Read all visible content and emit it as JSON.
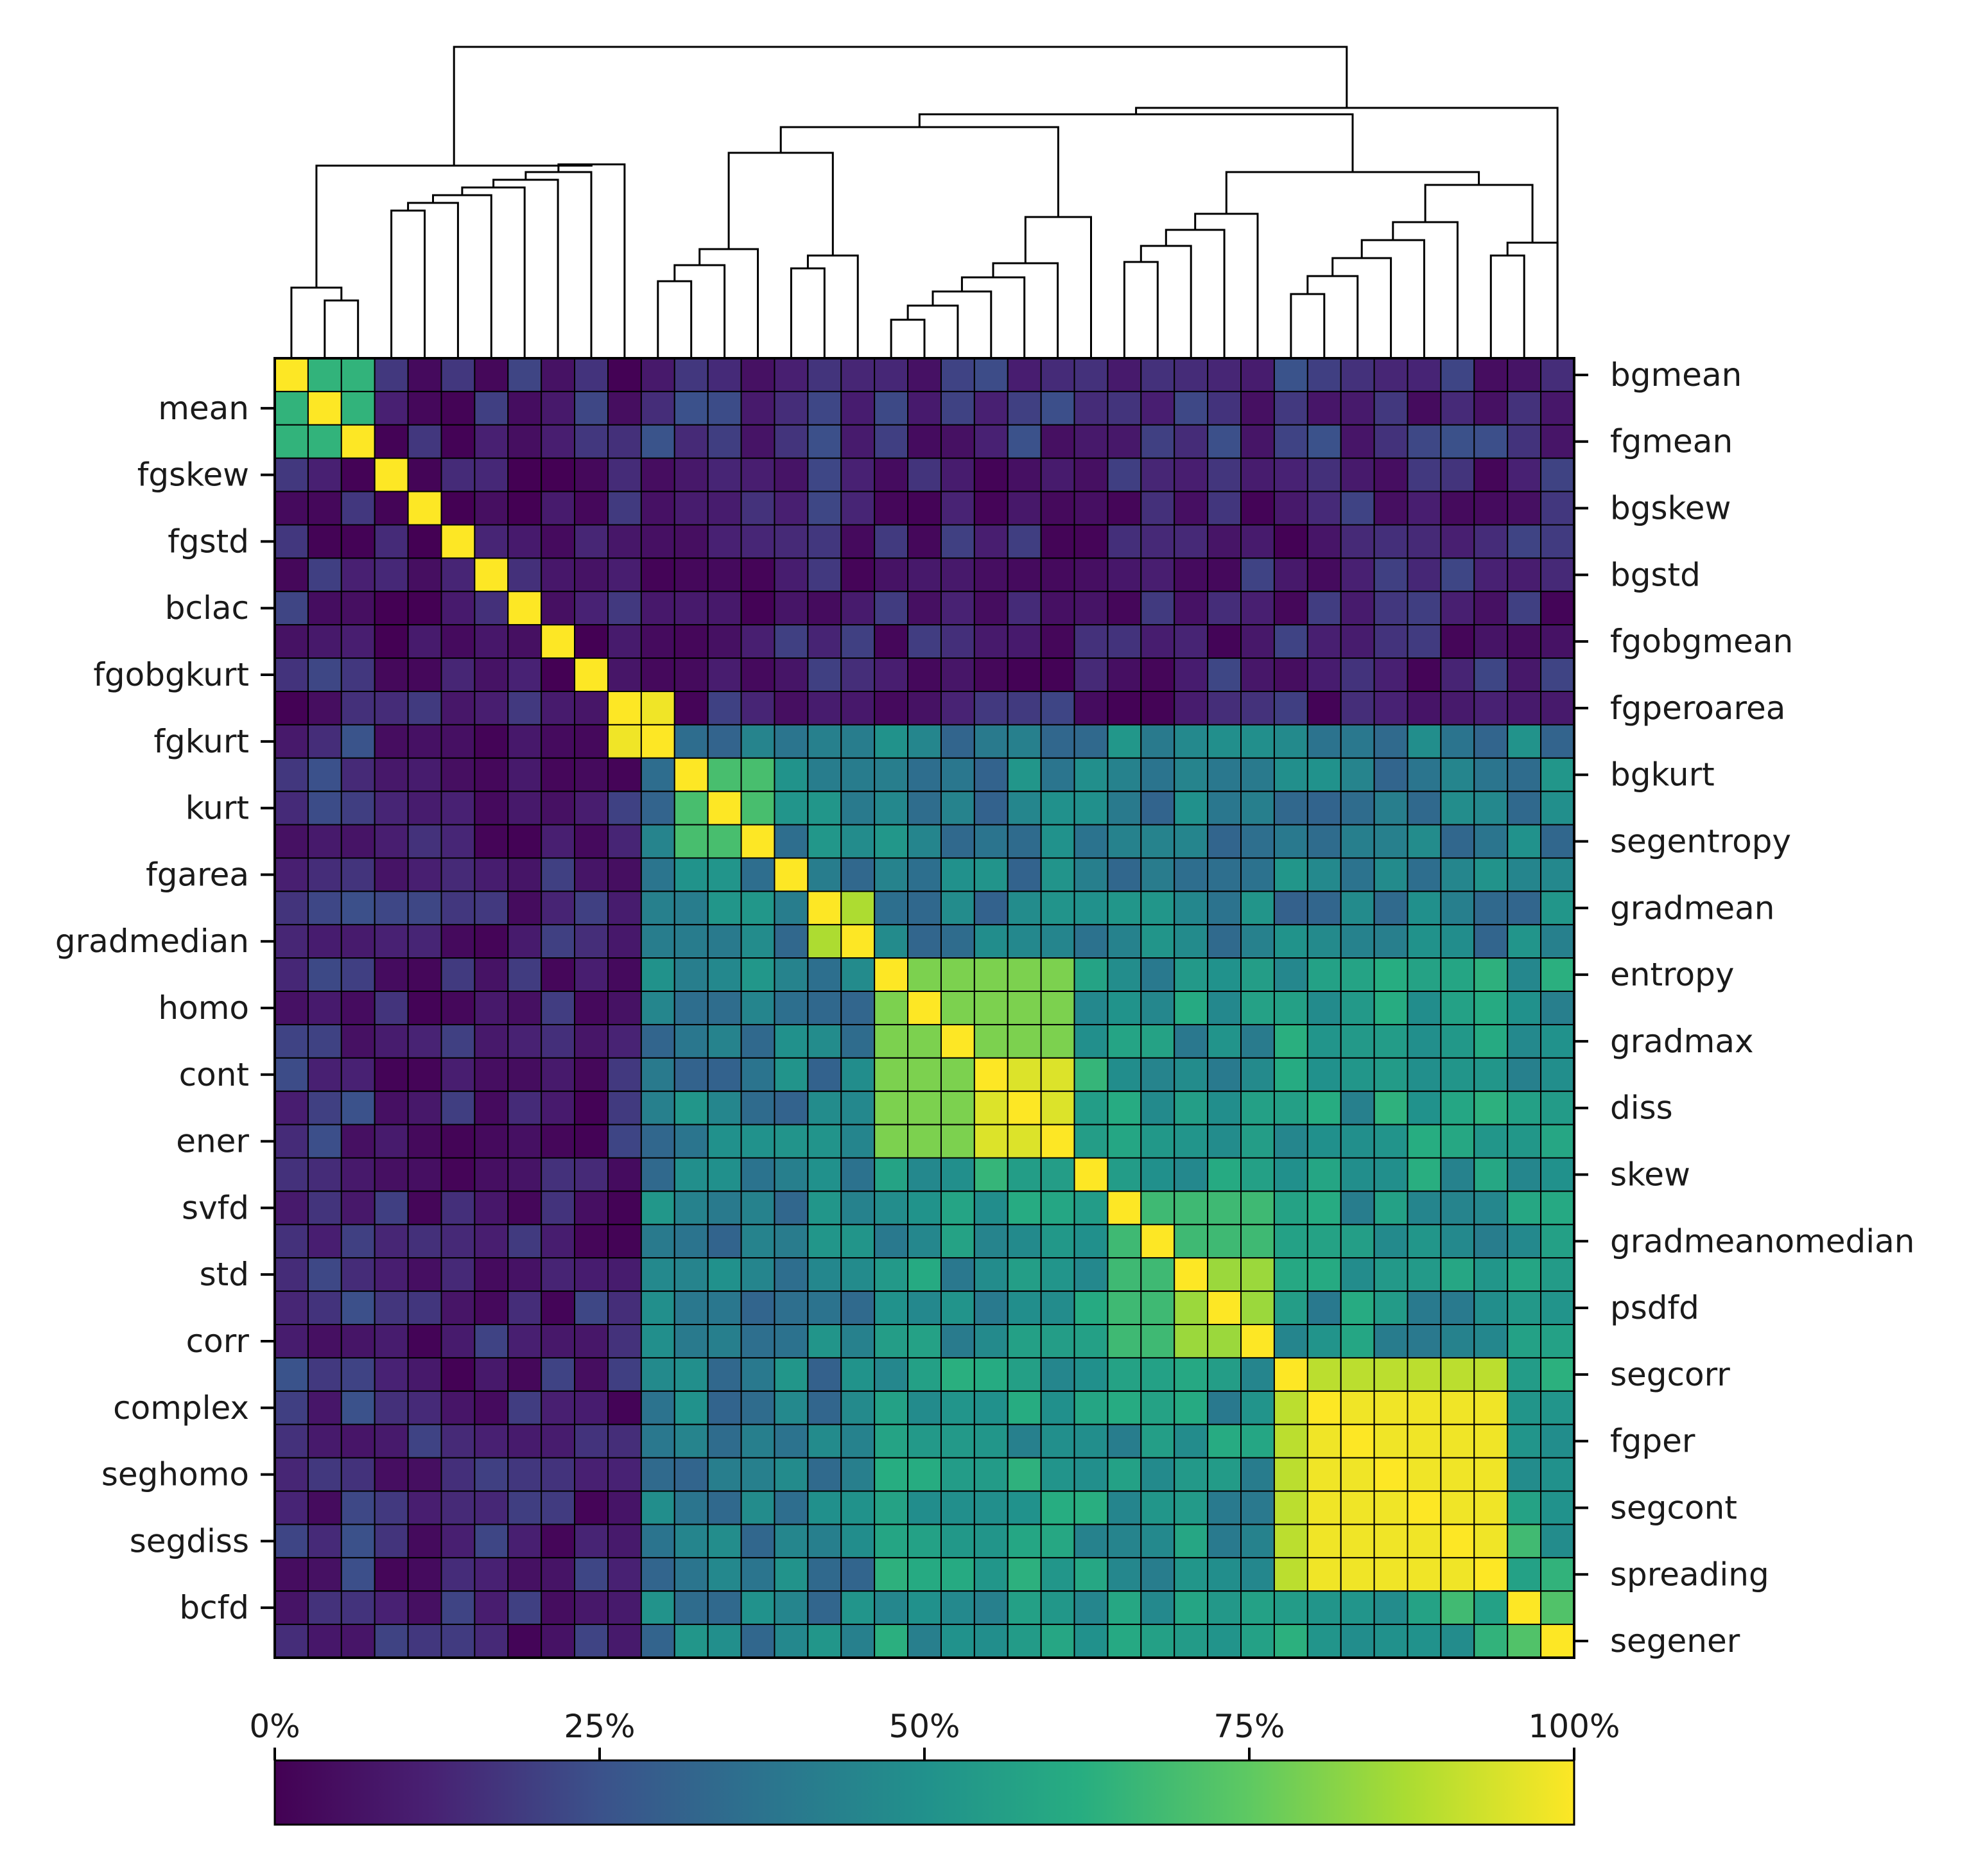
{
  "chart_data": {
    "type": "heatmap",
    "title": "",
    "n": 39,
    "left_labels": [
      "mean",
      "fgskew",
      "fgstd",
      "bclac",
      "fgobgkurt",
      "fgkurt",
      "kurt",
      "fgarea",
      "gradmedian",
      "homo",
      "cont",
      "ener",
      "svfd",
      "std",
      "corr",
      "complex",
      "seghomo",
      "segdiss",
      "bcfd"
    ],
    "right_labels": [
      "bgmean",
      "fgmean",
      "bgskew",
      "bgstd",
      "fgobgmean",
      "fgperoarea",
      "bgkurt",
      "segentropy",
      "gradmean",
      "entropy",
      "gradmax",
      "diss",
      "skew",
      "gradmeanomedian",
      "psdfd",
      "segcorr",
      "fgper",
      "segcont",
      "spreading",
      "segener"
    ],
    "colorbar": {
      "ticks": [
        "0%",
        "25%",
        "50%",
        "75%",
        "100%"
      ],
      "range": [
        0,
        100
      ],
      "colormap": "viridis"
    },
    "diagonal_value": 100,
    "blocks": [
      {
        "from": 0,
        "to": 2,
        "value": 65,
        "note": "mean group"
      },
      {
        "from": 10,
        "to": 11,
        "value": 98
      },
      {
        "from": 12,
        "to": 14,
        "value": 70
      },
      {
        "from": 16,
        "to": 17,
        "value": 88
      },
      {
        "from": 18,
        "to": 23,
        "value": 80
      },
      {
        "from": 21,
        "to": 23,
        "value": 95
      },
      {
        "from": 25,
        "to": 29,
        "value": 68
      },
      {
        "from": 27,
        "to": 29,
        "value": 85
      },
      {
        "from": 30,
        "to": 36,
        "value": 90
      },
      {
        "from": 31,
        "to": 36,
        "value": 98
      },
      {
        "from": 37,
        "to": 38,
        "value": 72
      }
    ],
    "groups": [
      {
        "from": 0,
        "to": 2,
        "value": 12
      },
      {
        "from": 3,
        "to": 10,
        "value": 8
      },
      {
        "from": 11,
        "to": 17,
        "value": 42
      },
      {
        "from": 18,
        "to": 24,
        "value": 55
      },
      {
        "from": 25,
        "to": 29,
        "value": 52
      },
      {
        "from": 30,
        "to": 38,
        "value": 58
      }
    ],
    "dendrogram": "hierarchical clustering tree over 39 features"
  }
}
